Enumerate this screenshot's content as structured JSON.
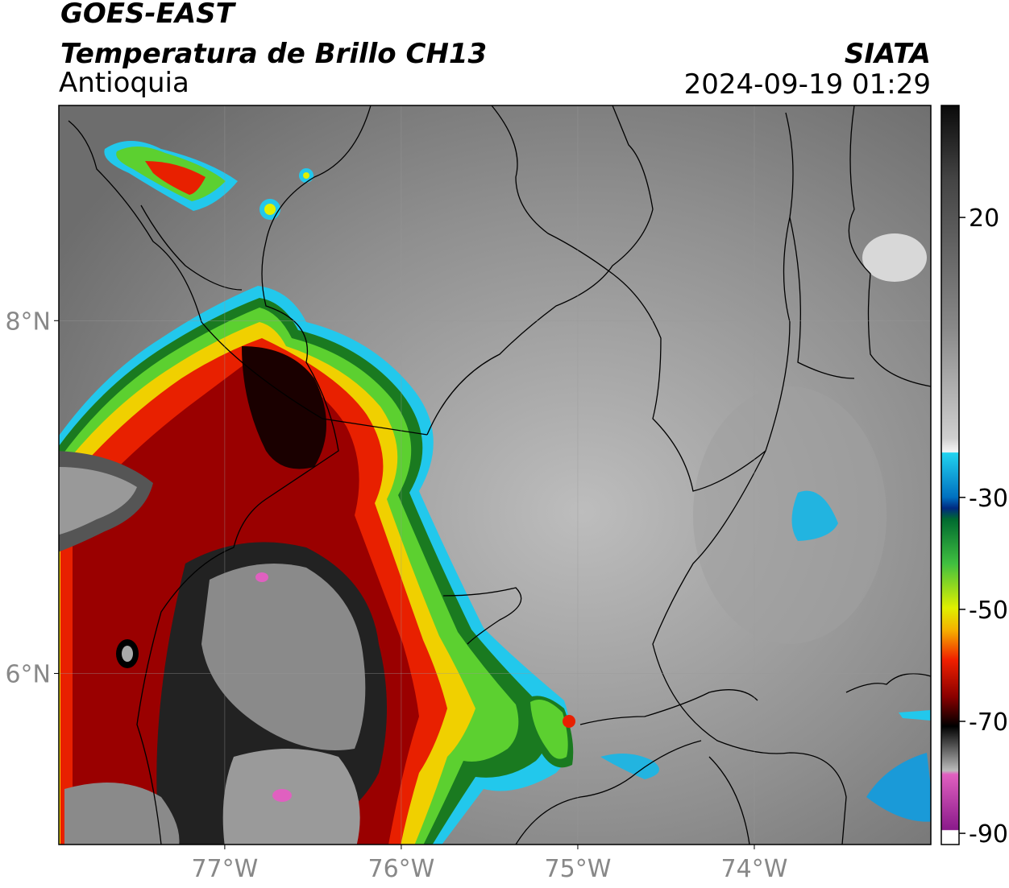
{
  "header": {
    "title": "GOES-EAST",
    "subtitle": "Temperatura de Brillo CH13",
    "region": "Antioquia",
    "source": "SIATA",
    "datetime": "2024-09-19 01:29"
  },
  "map": {
    "lonlim": [
      -77.94,
      -73.0
    ],
    "latlim": [
      5.03,
      9.22
    ],
    "xticks": [
      {
        "value": -77,
        "label": "77°W"
      },
      {
        "value": -76,
        "label": "76°W"
      },
      {
        "value": -75,
        "label": "75°W"
      },
      {
        "value": -74,
        "label": "74°W"
      }
    ],
    "yticks": [
      {
        "value": 8,
        "label": "8°N"
      },
      {
        "value": 6,
        "label": "6°N"
      }
    ]
  },
  "colorbar": {
    "range": [
      -92,
      40
    ],
    "ticks": [
      20,
      -30,
      -50,
      -70,
      -90
    ]
  }
}
